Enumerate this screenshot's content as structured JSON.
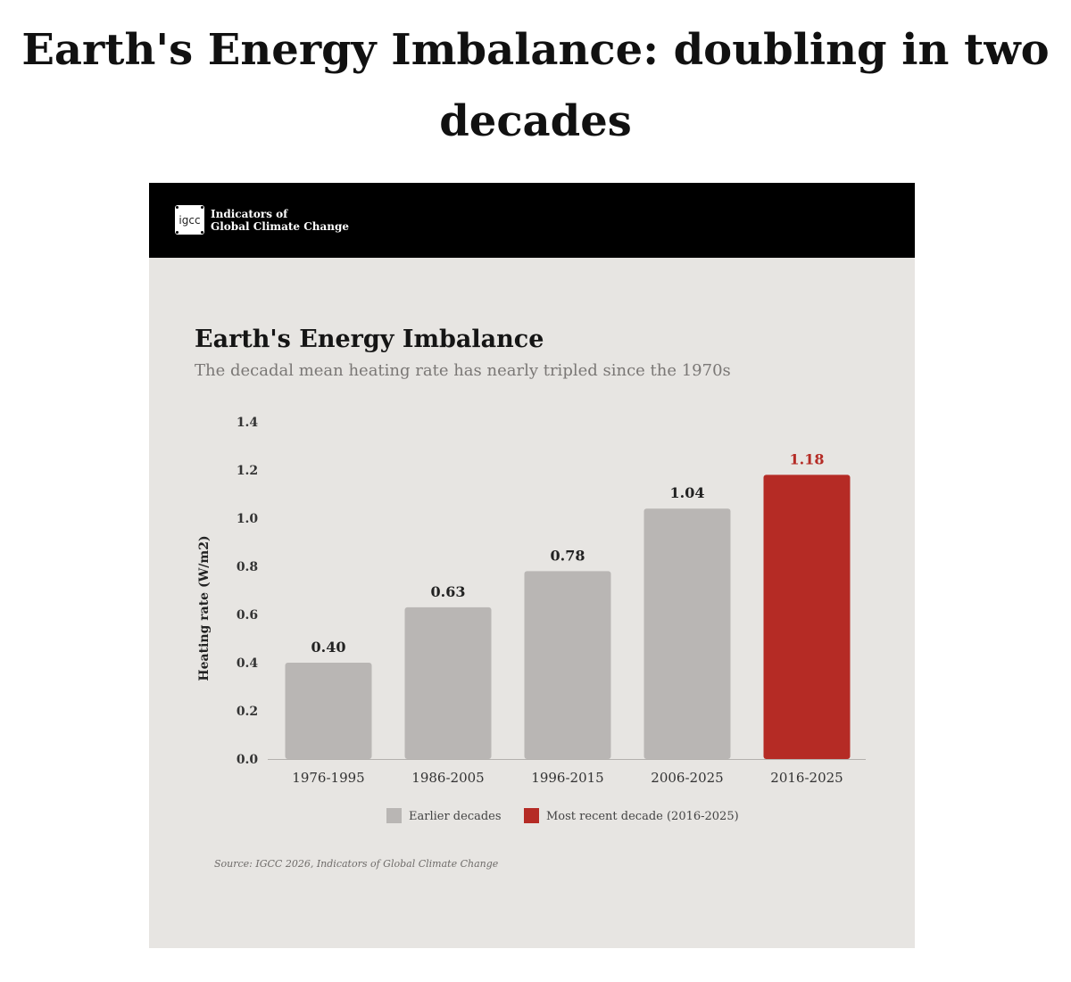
{
  "page": {
    "title": "Earth's Energy Imbalance: doubling in two decades"
  },
  "header": {
    "logo_text": "igcc",
    "org_line1": "Indicators of",
    "org_line2": "Global Climate Change",
    "background": "#000000"
  },
  "source_note": "Source: IGCC 2026, Indicators of Global Climate Change",
  "colors": {
    "earlier": "#b9b6b4",
    "recent": "#b52b25",
    "card_background": "#e7e5e2"
  },
  "chart_data": {
    "type": "bar",
    "title": "Earth's Energy Imbalance",
    "subtitle": "The decadal mean heating rate has nearly tripled since the 1970s",
    "xlabel": "",
    "ylabel": "Heating rate (W/m2)",
    "ylim": [
      0,
      1.4
    ],
    "yticks": [
      "0.0",
      "0.2",
      "0.4",
      "0.6",
      "0.8",
      "1.0",
      "1.2",
      "1.4"
    ],
    "categories": [
      "1976-1995",
      "1986-2005",
      "1996-2015",
      "2006-2025",
      "2016-2025"
    ],
    "values": [
      0.4,
      0.63,
      0.78,
      1.04,
      1.18
    ],
    "value_labels": [
      "0.40",
      "0.63",
      "0.78",
      "1.04",
      "1.18"
    ],
    "bar_groups": [
      "earlier",
      "earlier",
      "earlier",
      "earlier",
      "recent"
    ],
    "legend": {
      "placement": "bottom-center",
      "items": [
        {
          "key": "earlier",
          "label": "Earlier decades",
          "color": "#b9b6b4"
        },
        {
          "key": "recent",
          "label": "Most recent decade (2016-2025)",
          "color": "#b52b25"
        }
      ]
    },
    "grid": false
  }
}
